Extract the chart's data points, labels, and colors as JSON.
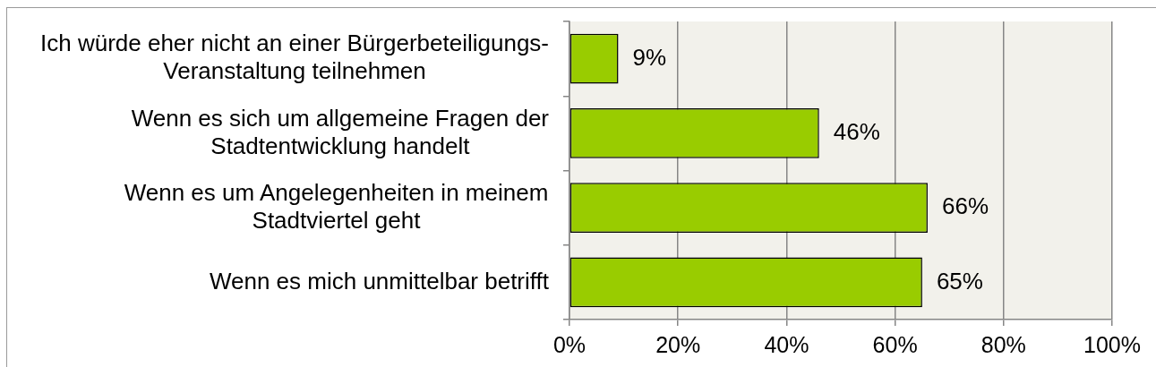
{
  "chart_data": {
    "type": "bar",
    "orientation": "horizontal",
    "categories": [
      "Ich würde eher nicht an einer Bürgerbeteiligungs-Veranstaltung teilnehmen",
      "Wenn es sich um allgemeine Fragen der Stadtentwicklung handelt",
      "Wenn es um Angelegenheiten in meinem Stadtviertel geht",
      "Wenn es mich unmittelbar betrifft"
    ],
    "values": [
      9,
      46,
      66,
      65
    ],
    "color": "#99cc00",
    "value_labels": [
      "9%",
      "46%",
      "66%",
      "65%"
    ],
    "xlim": [
      0,
      100
    ],
    "xticks": [
      {
        "value": 0,
        "label": "0%"
      },
      {
        "value": 20,
        "label": "20%"
      },
      {
        "value": 40,
        "label": "40%"
      },
      {
        "value": 60,
        "label": "60%"
      },
      {
        "value": 80,
        "label": "80%"
      },
      {
        "value": 100,
        "label": "100%"
      }
    ],
    "grid": "x"
  }
}
